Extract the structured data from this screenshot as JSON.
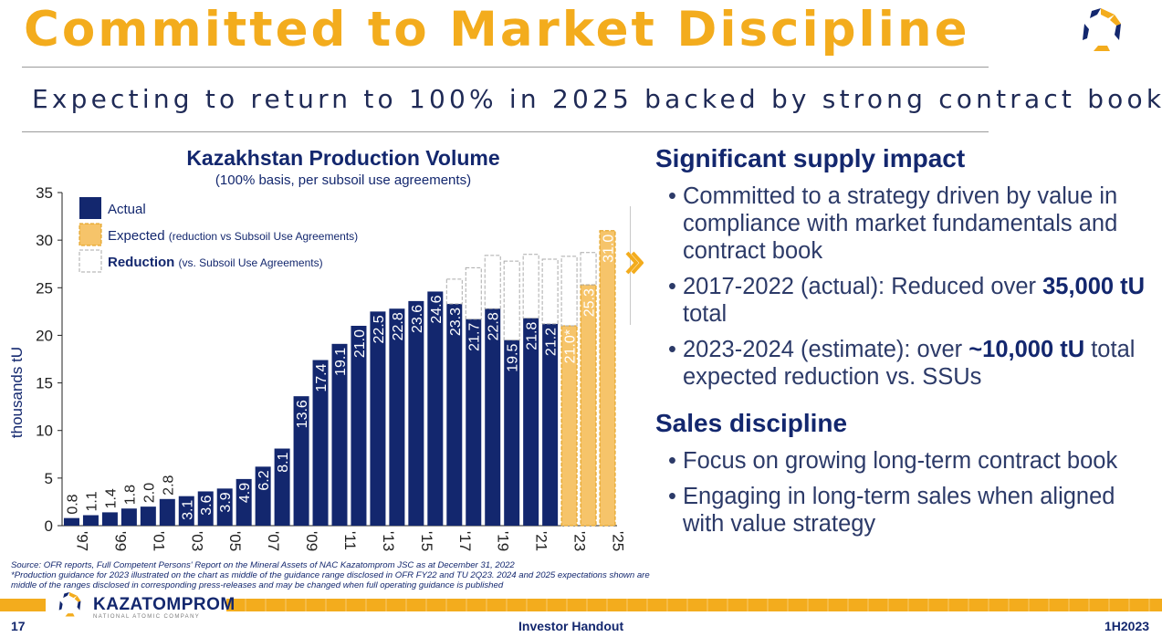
{
  "header": {
    "title": "Committed to Market Discipline",
    "subtitle": "Expecting to return to 100% in 2025 backed by strong contract book"
  },
  "colors": {
    "accent": "#f3ac1d",
    "navy": "#13276e",
    "expected_fill": "#f6c46a",
    "reduction_border": "#aaaaaa"
  },
  "chart_data": {
    "type": "bar",
    "title": "Kazakhstan Production Volume",
    "subtitle": "(100% basis, per subsoil use agreements)",
    "ylabel": "thousands tU",
    "ylim": [
      0,
      35
    ],
    "yticks": [
      0,
      5,
      10,
      15,
      20,
      25,
      30,
      35
    ],
    "x": [
      1997,
      1998,
      1999,
      2000,
      2001,
      2002,
      2003,
      2004,
      2005,
      2006,
      2007,
      2008,
      2009,
      2010,
      2011,
      2012,
      2013,
      2014,
      2015,
      2016,
      2017,
      2018,
      2019,
      2020,
      2021,
      2022,
      2023,
      2024,
      2025
    ],
    "xtick_labels": [
      "'97",
      "'99",
      "'01",
      "'03",
      "'05",
      "'07",
      "'09",
      "'11",
      "'13",
      "'15",
      "'17",
      "'19",
      "'21",
      "'23",
      "'25"
    ],
    "legend": {
      "placement": "top-left",
      "actual": "Actual",
      "expected": "Expected",
      "expected_note": "(reduction vs Subsoil Use Agreements)",
      "reduction": "Reduction",
      "reduction_note": "(vs. Subsoil Use Agreements)"
    },
    "series": [
      {
        "name": "Actual",
        "values": [
          0.8,
          1.1,
          1.4,
          1.8,
          2.0,
          2.8,
          3.1,
          3.6,
          3.9,
          4.9,
          6.2,
          8.1,
          13.6,
          17.4,
          19.1,
          21.0,
          22.5,
          22.8,
          23.6,
          24.6,
          23.3,
          21.7,
          22.8,
          19.5,
          21.8,
          21.2,
          null,
          null,
          null
        ]
      },
      {
        "name": "Expected",
        "values": [
          null,
          null,
          null,
          null,
          null,
          null,
          null,
          null,
          null,
          null,
          null,
          null,
          null,
          null,
          null,
          null,
          null,
          null,
          null,
          null,
          null,
          null,
          null,
          null,
          null,
          null,
          21.0,
          25.3,
          31.0
        ]
      },
      {
        "name": "Reduction",
        "values": [
          null,
          null,
          null,
          null,
          null,
          null,
          null,
          null,
          null,
          null,
          null,
          null,
          null,
          null,
          null,
          null,
          null,
          null,
          null,
          null,
          2.6,
          5.4,
          5.6,
          8.3,
          6.7,
          6.8,
          7.3,
          3.4,
          null
        ]
      }
    ],
    "value_labels": [
      "0.8",
      "1.1",
      "1.4",
      "1.8",
      "2.0",
      "2.8",
      "3.1",
      "3.6",
      "3.9",
      "4.9",
      "6.2",
      "8.1",
      "13.6",
      "17.4",
      "19.1",
      "21.0",
      "22.5",
      "22.8",
      "23.6",
      "24.6",
      "23.3",
      "21.7",
      "22.8",
      "19.5",
      "21.8",
      "21.2",
      "21.0*",
      "25.3",
      "31.0"
    ],
    "grid": false
  },
  "panel": {
    "supply_heading": "Significant supply impact",
    "bullet1": "Committed to a strategy driven by value in compliance with market fundamentals and contract book",
    "bullet2_pre": "2017-2022 (actual): Reduced over ",
    "bullet2_bold": "35,000 tU",
    "bullet2_post": " total",
    "bullet3_pre": "2023-2024 (estimate): over ",
    "bullet3_bold": "~10,000 tU",
    "bullet3_post": " total expected reduction vs. SSUs",
    "sales_heading": "Sales discipline",
    "bullet4": "Focus on growing long-term contract book",
    "bullet5": "Engaging in long-term sales when aligned with value strategy"
  },
  "source": {
    "line1": "Source: OFR reports, Full Competent Persons' Report on the Mineral Assets of NAC Kazatomprom JSC as at December 31, 2022",
    "line2": "*Production guidance for 2023 illustrated on the chart as middle of the guidance range disclosed in OFR FY22 and TU 2Q23. 2024 and 2025 expectations shown are middle of the ranges disclosed in corresponding press-releases and may be changed when full operating guidance is published"
  },
  "footer": {
    "brand": "KAZATOMPROM",
    "brand_sub": "NATIONAL ATOMIC COMPANY",
    "page": "17",
    "center": "Investor Handout",
    "period": "1H2023"
  }
}
